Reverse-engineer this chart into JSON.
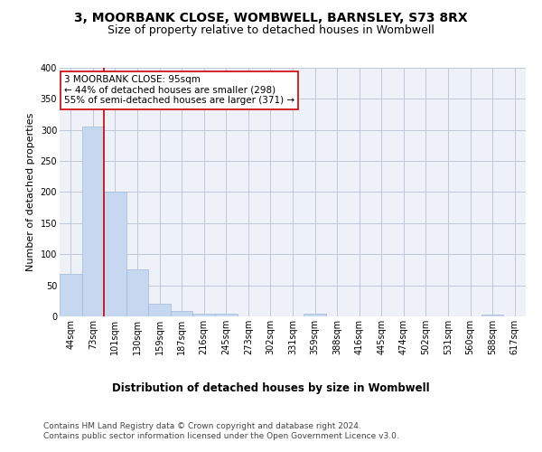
{
  "title": "3, MOORBANK CLOSE, WOMBWELL, BARNSLEY, S73 8RX",
  "subtitle": "Size of property relative to detached houses in Wombwell",
  "xlabel": "Distribution of detached houses by size in Wombwell",
  "ylabel": "Number of detached properties",
  "categories": [
    "44sqm",
    "73sqm",
    "101sqm",
    "130sqm",
    "159sqm",
    "187sqm",
    "216sqm",
    "245sqm",
    "273sqm",
    "302sqm",
    "331sqm",
    "359sqm",
    "388sqm",
    "416sqm",
    "445sqm",
    "474sqm",
    "502sqm",
    "531sqm",
    "560sqm",
    "588sqm",
    "617sqm"
  ],
  "values": [
    68,
    305,
    200,
    75,
    20,
    9,
    4,
    4,
    0,
    0,
    0,
    5,
    0,
    0,
    0,
    0,
    0,
    0,
    0,
    3,
    0
  ],
  "bar_color": "#c5d8f0",
  "bar_edge_color": "#a0b8d8",
  "vline_color": "#cc0000",
  "annotation_text": "3 MOORBANK CLOSE: 95sqm\n← 44% of detached houses are smaller (298)\n55% of semi-detached houses are larger (371) →",
  "annotation_box_color": "#ffffff",
  "annotation_box_edge_color": "#cc0000",
  "ylim": [
    0,
    400
  ],
  "yticks": [
    0,
    50,
    100,
    150,
    200,
    250,
    300,
    350,
    400
  ],
  "grid_color": "#c0c8d8",
  "background_color": "#eef2f8",
  "footer_text": "Contains HM Land Registry data © Crown copyright and database right 2024.\nContains public sector information licensed under the Open Government Licence v3.0.",
  "title_fontsize": 10,
  "subtitle_fontsize": 9,
  "xlabel_fontsize": 8.5,
  "ylabel_fontsize": 8,
  "tick_fontsize": 7,
  "annotation_fontsize": 7.5,
  "footer_fontsize": 6.5
}
